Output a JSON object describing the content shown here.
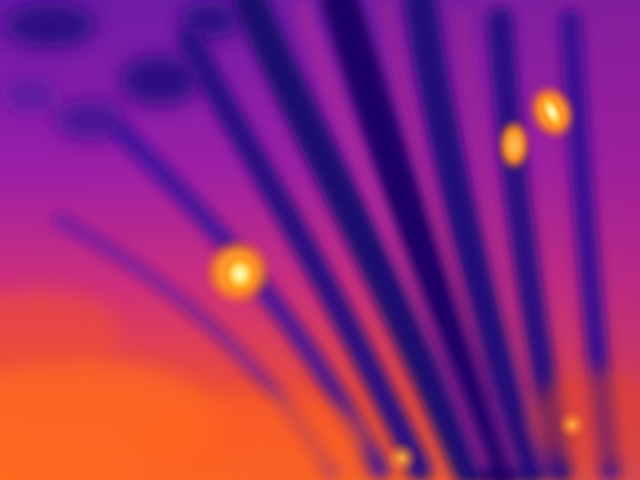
{
  "image": {
    "kind": "thermal-infrared-photo",
    "palette": "ironbow",
    "colors": {
      "coldest": "#1a0066",
      "cold": "#3a1aa8",
      "cool": "#7a1aa8",
      "mid": "#c02a9a",
      "warm": "#ff5a2a",
      "hot": "#ff8a1a",
      "hottest": "#fff2a0"
    }
  }
}
